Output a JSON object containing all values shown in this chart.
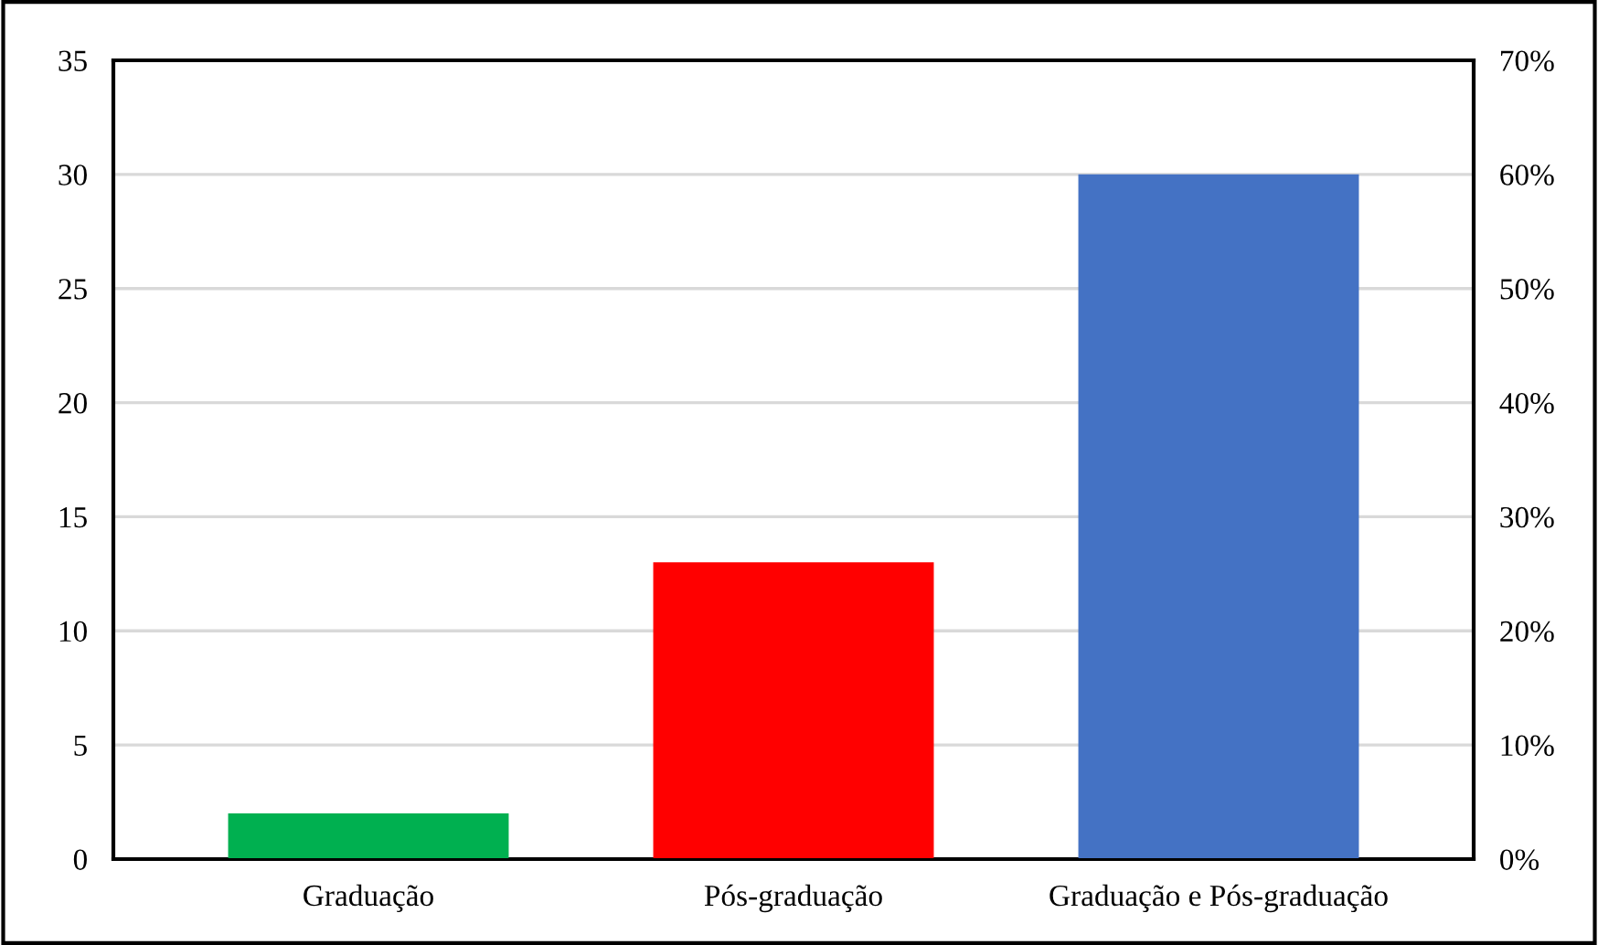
{
  "chart_data": {
    "type": "bar",
    "categories": [
      "Graduação",
      "Pós-graduação",
      "Graduação e Pós-graduação"
    ],
    "values": [
      2,
      13,
      30
    ],
    "colors": [
      "#00b050",
      "#ff0000",
      "#4472c4"
    ],
    "ylim": [
      0,
      35
    ],
    "yticks": [
      0,
      5,
      10,
      15,
      20,
      25,
      30,
      35
    ],
    "y2lim": [
      0,
      70
    ],
    "y2ticks": [
      {
        "value": 0,
        "label": "0%"
      },
      {
        "value": 10,
        "label": "10%"
      },
      {
        "value": 20,
        "label": "20%"
      },
      {
        "value": 30,
        "label": "30%"
      },
      {
        "value": 40,
        "label": "40%"
      },
      {
        "value": 50,
        "label": "50%"
      },
      {
        "value": 60,
        "label": "60%"
      },
      {
        "value": 70,
        "label": "70%"
      }
    ],
    "grid": "y"
  }
}
